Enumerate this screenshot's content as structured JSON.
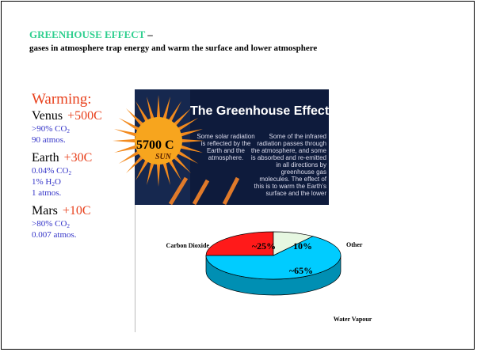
{
  "slide": {
    "title": "GREENHOUSE EFFECT",
    "title_dash": " –",
    "subtitle": "gases in atmosphere trap energy and warm the surface and lower atmosphere",
    "warming": "Warming:",
    "planets": [
      {
        "name": "Venus",
        "delta": "+500C",
        "lines": [
          [
            ">90% CO",
            "2",
            ""
          ],
          [
            "90 atmos."
          ]
        ]
      },
      {
        "name": "Earth",
        "delta": "+30C",
        "lines": [
          [
            "0.04% CO",
            "2",
            ""
          ],
          [
            "1% H",
            "2",
            "O"
          ],
          [
            "1 atmos."
          ]
        ]
      },
      {
        "name": "Mars",
        "delta": "+10C",
        "lines": [
          [
            ">80% CO",
            "2",
            ""
          ],
          [
            "0.007 atmos."
          ]
        ]
      }
    ],
    "image": {
      "title": "The Greenhouse Effect",
      "sun_temp": "5700 C",
      "sun": "SUN",
      "note_left": [
        "Some solar radiation",
        "is reflected by the",
        "Earth and the",
        "atmosphere."
      ],
      "note_right": [
        "Some of the infrared",
        "radiation passes through",
        "the atmosphere, and some",
        "is absorbed and re-emitted",
        "in all directions by",
        "greenhouse gas",
        "molecules. The effect of",
        "this is to warm the Earth's",
        "surface and the lower"
      ]
    }
  },
  "chart_data": {
    "type": "pie",
    "categories": [
      "Carbon Dioxide",
      "Other",
      "Water Vapour"
    ],
    "values": [
      25,
      10,
      65
    ],
    "value_labels": [
      "~25%",
      "10%",
      "~65%"
    ],
    "colors": [
      "#ff1a1a",
      "#e6f7e1",
      "#00ccff"
    ]
  }
}
